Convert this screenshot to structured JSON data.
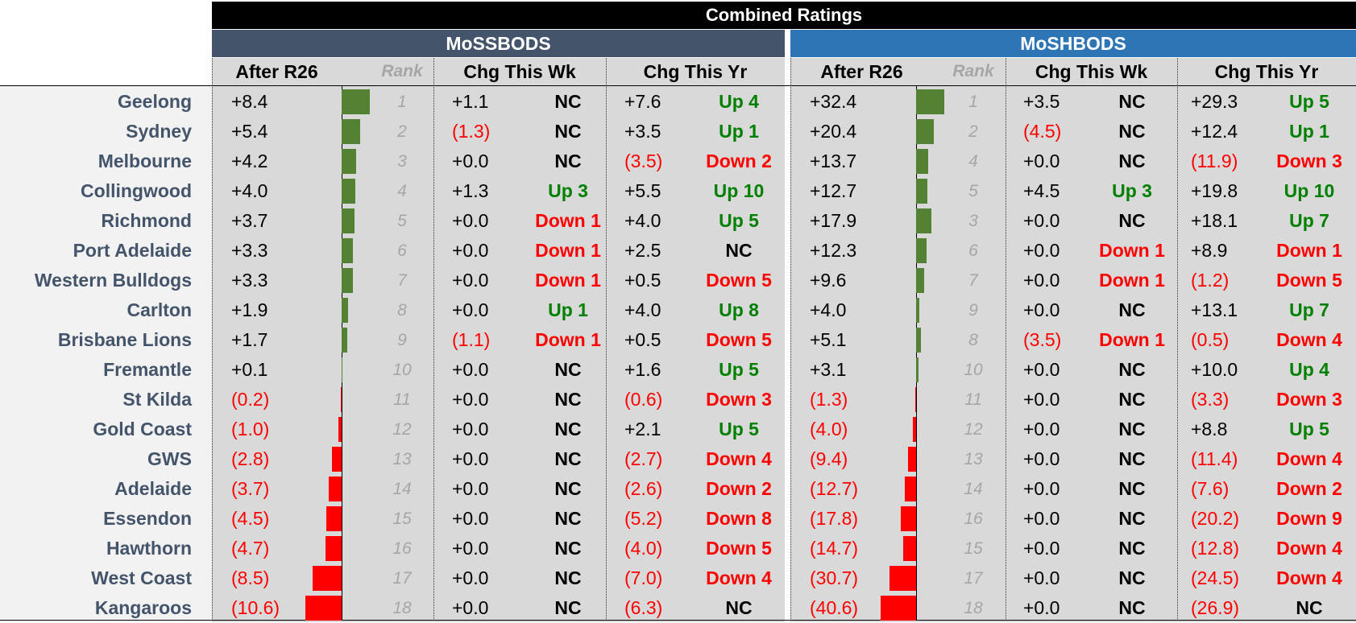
{
  "title": "Combined Ratings",
  "groups": [
    {
      "name": "MoSSBODS",
      "headers": {
        "rating": "After R26",
        "rank": "Rank",
        "wk": "Chg This Wk",
        "yr": "Chg This Yr"
      }
    },
    {
      "name": "MoSHBODS",
      "headers": {
        "rating": "After R26",
        "rank": "Rank",
        "wk": "Chg This Wk",
        "yr": "Chg This Yr"
      }
    }
  ],
  "colors": {
    "team_text": "#44546a",
    "pos_bar": "#548235",
    "neg_bar": "#ff0000",
    "up": "#008000",
    "down": "#ff0000"
  },
  "chart_data": {
    "type": "table",
    "title": "Combined Ratings",
    "series": [
      "MoSSBODS",
      "MoSHBODS"
    ],
    "rows": [
      {
        "team": "Geelong",
        "ss": {
          "rating": 8.4,
          "rating_text": "+8.4",
          "rank": "1",
          "wk": "+1.1",
          "wk_move": "NC",
          "yr": "+7.6",
          "yr_move": "Up 4"
        },
        "sh": {
          "rating": 32.4,
          "rating_text": "+32.4",
          "rank": "1",
          "wk": "+3.5",
          "wk_move": "NC",
          "yr": "+29.3",
          "yr_move": "Up 5"
        }
      },
      {
        "team": "Sydney",
        "ss": {
          "rating": 5.4,
          "rating_text": "+5.4",
          "rank": "2",
          "wk": "(1.3)",
          "wk_move": "NC",
          "yr": "+3.5",
          "yr_move": "Up 1"
        },
        "sh": {
          "rating": 20.4,
          "rating_text": "+20.4",
          "rank": "2",
          "wk": "(4.5)",
          "wk_move": "NC",
          "yr": "+12.4",
          "yr_move": "Up 1"
        }
      },
      {
        "team": "Melbourne",
        "ss": {
          "rating": 4.2,
          "rating_text": "+4.2",
          "rank": "3",
          "wk": "+0.0",
          "wk_move": "NC",
          "yr": "(3.5)",
          "yr_move": "Down 2"
        },
        "sh": {
          "rating": 13.7,
          "rating_text": "+13.7",
          "rank": "4",
          "wk": "+0.0",
          "wk_move": "NC",
          "yr": "(11.9)",
          "yr_move": "Down 3"
        }
      },
      {
        "team": "Collingwood",
        "ss": {
          "rating": 4.0,
          "rating_text": "+4.0",
          "rank": "4",
          "wk": "+1.3",
          "wk_move": "Up 3",
          "yr": "+5.5",
          "yr_move": "Up 10"
        },
        "sh": {
          "rating": 12.7,
          "rating_text": "+12.7",
          "rank": "5",
          "wk": "+4.5",
          "wk_move": "Up 3",
          "yr": "+19.8",
          "yr_move": "Up 10"
        }
      },
      {
        "team": "Richmond",
        "ss": {
          "rating": 3.7,
          "rating_text": "+3.7",
          "rank": "5",
          "wk": "+0.0",
          "wk_move": "Down 1",
          "yr": "+4.0",
          "yr_move": "Up 5"
        },
        "sh": {
          "rating": 17.9,
          "rating_text": "+17.9",
          "rank": "3",
          "wk": "+0.0",
          "wk_move": "NC",
          "yr": "+18.1",
          "yr_move": "Up 7"
        }
      },
      {
        "team": "Port Adelaide",
        "ss": {
          "rating": 3.3,
          "rating_text": "+3.3",
          "rank": "6",
          "wk": "+0.0",
          "wk_move": "Down 1",
          "yr": "+2.5",
          "yr_move": "NC"
        },
        "sh": {
          "rating": 12.3,
          "rating_text": "+12.3",
          "rank": "6",
          "wk": "+0.0",
          "wk_move": "Down 1",
          "yr": "+8.9",
          "yr_move": "Down 1"
        }
      },
      {
        "team": "Western Bulldogs",
        "ss": {
          "rating": 3.3,
          "rating_text": "+3.3",
          "rank": "7",
          "wk": "+0.0",
          "wk_move": "Down 1",
          "yr": "+0.5",
          "yr_move": "Down 5"
        },
        "sh": {
          "rating": 9.6,
          "rating_text": "+9.6",
          "rank": "7",
          "wk": "+0.0",
          "wk_move": "Down 1",
          "yr": "(1.2)",
          "yr_move": "Down 5"
        }
      },
      {
        "team": "Carlton",
        "ss": {
          "rating": 1.9,
          "rating_text": "+1.9",
          "rank": "8",
          "wk": "+0.0",
          "wk_move": "Up 1",
          "yr": "+4.0",
          "yr_move": "Up 8"
        },
        "sh": {
          "rating": 4.0,
          "rating_text": "+4.0",
          "rank": "9",
          "wk": "+0.0",
          "wk_move": "NC",
          "yr": "+13.1",
          "yr_move": "Up 7"
        }
      },
      {
        "team": "Brisbane Lions",
        "ss": {
          "rating": 1.7,
          "rating_text": "+1.7",
          "rank": "9",
          "wk": "(1.1)",
          "wk_move": "Down 1",
          "yr": "+0.5",
          "yr_move": "Down 5"
        },
        "sh": {
          "rating": 5.1,
          "rating_text": "+5.1",
          "rank": "8",
          "wk": "(3.5)",
          "wk_move": "Down 1",
          "yr": "(0.5)",
          "yr_move": "Down 4"
        }
      },
      {
        "team": "Fremantle",
        "ss": {
          "rating": 0.1,
          "rating_text": "+0.1",
          "rank": "10",
          "wk": "+0.0",
          "wk_move": "NC",
          "yr": "+1.6",
          "yr_move": "Up 5"
        },
        "sh": {
          "rating": 3.1,
          "rating_text": "+3.1",
          "rank": "10",
          "wk": "+0.0",
          "wk_move": "NC",
          "yr": "+10.0",
          "yr_move": "Up 4"
        }
      },
      {
        "team": "St Kilda",
        "ss": {
          "rating": -0.2,
          "rating_text": "(0.2)",
          "rank": "11",
          "wk": "+0.0",
          "wk_move": "NC",
          "yr": "(0.6)",
          "yr_move": "Down 3"
        },
        "sh": {
          "rating": -1.3,
          "rating_text": "(1.3)",
          "rank": "11",
          "wk": "+0.0",
          "wk_move": "NC",
          "yr": "(3.3)",
          "yr_move": "Down 3"
        }
      },
      {
        "team": "Gold Coast",
        "ss": {
          "rating": -1.0,
          "rating_text": "(1.0)",
          "rank": "12",
          "wk": "+0.0",
          "wk_move": "NC",
          "yr": "+2.1",
          "yr_move": "Up 5"
        },
        "sh": {
          "rating": -4.0,
          "rating_text": "(4.0)",
          "rank": "12",
          "wk": "+0.0",
          "wk_move": "NC",
          "yr": "+8.8",
          "yr_move": "Up 5"
        }
      },
      {
        "team": "GWS",
        "ss": {
          "rating": -2.8,
          "rating_text": "(2.8)",
          "rank": "13",
          "wk": "+0.0",
          "wk_move": "NC",
          "yr": "(2.7)",
          "yr_move": "Down 4"
        },
        "sh": {
          "rating": -9.4,
          "rating_text": "(9.4)",
          "rank": "13",
          "wk": "+0.0",
          "wk_move": "NC",
          "yr": "(11.4)",
          "yr_move": "Down 4"
        }
      },
      {
        "team": "Adelaide",
        "ss": {
          "rating": -3.7,
          "rating_text": "(3.7)",
          "rank": "14",
          "wk": "+0.0",
          "wk_move": "NC",
          "yr": "(2.6)",
          "yr_move": "Down 2"
        },
        "sh": {
          "rating": -12.7,
          "rating_text": "(12.7)",
          "rank": "14",
          "wk": "+0.0",
          "wk_move": "NC",
          "yr": "(7.6)",
          "yr_move": "Down 2"
        }
      },
      {
        "team": "Essendon",
        "ss": {
          "rating": -4.5,
          "rating_text": "(4.5)",
          "rank": "15",
          "wk": "+0.0",
          "wk_move": "NC",
          "yr": "(5.2)",
          "yr_move": "Down 8"
        },
        "sh": {
          "rating": -17.8,
          "rating_text": "(17.8)",
          "rank": "16",
          "wk": "+0.0",
          "wk_move": "NC",
          "yr": "(20.2)",
          "yr_move": "Down 9"
        }
      },
      {
        "team": "Hawthorn",
        "ss": {
          "rating": -4.7,
          "rating_text": "(4.7)",
          "rank": "16",
          "wk": "+0.0",
          "wk_move": "NC",
          "yr": "(4.0)",
          "yr_move": "Down 5"
        },
        "sh": {
          "rating": -14.7,
          "rating_text": "(14.7)",
          "rank": "15",
          "wk": "+0.0",
          "wk_move": "NC",
          "yr": "(12.8)",
          "yr_move": "Down 4"
        }
      },
      {
        "team": "West Coast",
        "ss": {
          "rating": -8.5,
          "rating_text": "(8.5)",
          "rank": "17",
          "wk": "+0.0",
          "wk_move": "NC",
          "yr": "(7.0)",
          "yr_move": "Down 4"
        },
        "sh": {
          "rating": -30.7,
          "rating_text": "(30.7)",
          "rank": "17",
          "wk": "+0.0",
          "wk_move": "NC",
          "yr": "(24.5)",
          "yr_move": "Down 4"
        }
      },
      {
        "team": "Kangaroos",
        "ss": {
          "rating": -10.6,
          "rating_text": "(10.6)",
          "rank": "18",
          "wk": "+0.0",
          "wk_move": "NC",
          "yr": "(6.3)",
          "yr_move": "NC"
        },
        "sh": {
          "rating": -40.6,
          "rating_text": "(40.6)",
          "rank": "18",
          "wk": "+0.0",
          "wk_move": "NC",
          "yr": "(26.9)",
          "yr_move": "NC"
        }
      }
    ]
  }
}
